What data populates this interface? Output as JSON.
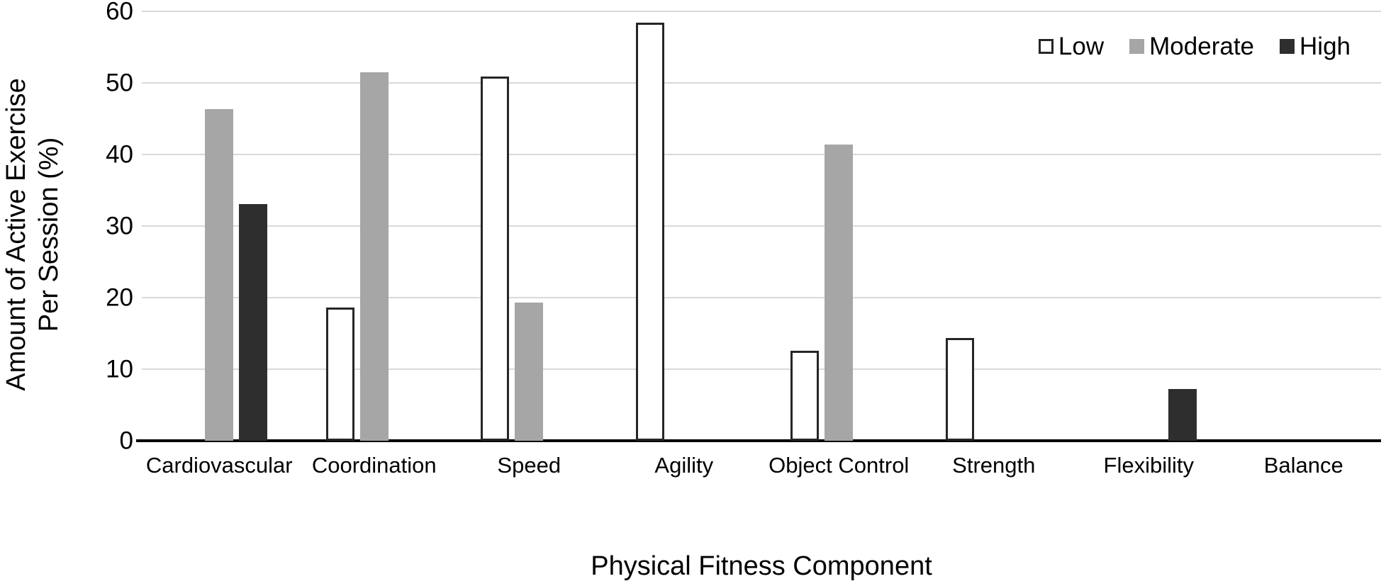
{
  "figure": {
    "background": "#ffffff",
    "axis_color": "#000000",
    "gridline_color": "#d9d9d9"
  },
  "y_axis": {
    "title_line1": "Amount of Active Exercise",
    "title_line2": "Per Session (%)",
    "ticks": [
      0,
      10,
      20,
      30,
      40,
      50,
      60
    ]
  },
  "x_axis": {
    "title": "Physical Fitness Component"
  },
  "chart_data": {
    "type": "bar",
    "title": "",
    "xlabel": "Physical Fitness Component",
    "ylabel": "Amount of Active Exercise Per Session (%)",
    "ylim": [
      0,
      60
    ],
    "ytick_step": 10,
    "grid": true,
    "legend_position": "top-right",
    "categories": [
      "Cardiovascular",
      "Coordination",
      "Speed",
      "Agility",
      "Object Control",
      "Strength",
      "Flexibility",
      "Balance"
    ],
    "series": [
      {
        "name": "Low",
        "fill": "#ffffff",
        "border": "#262626",
        "values": [
          0,
          18.6,
          50.9,
          58.4,
          12.6,
          14.4,
          0,
          0
        ]
      },
      {
        "name": "Moderate",
        "fill": "#a6a6a6",
        "border": "",
        "values": [
          46.3,
          51.5,
          19.3,
          0,
          41.4,
          0,
          0,
          0
        ]
      },
      {
        "name": "High",
        "fill": "#2e2e2e",
        "border": "",
        "values": [
          33.1,
          0,
          0,
          0,
          0,
          0,
          7.2,
          0
        ]
      }
    ]
  }
}
